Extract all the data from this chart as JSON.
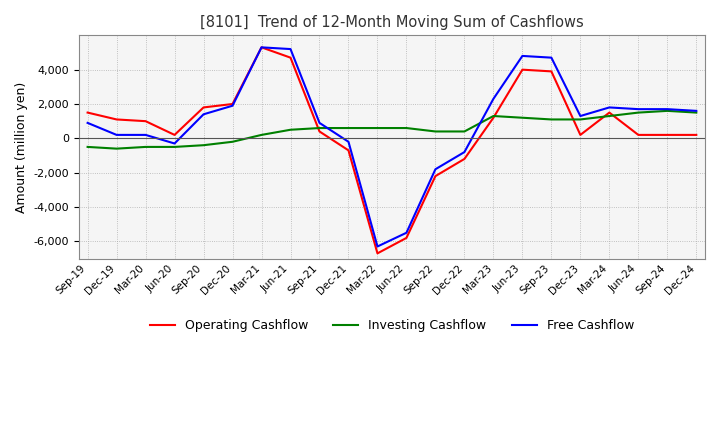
{
  "title": "[8101]  Trend of 12-Month Moving Sum of Cashflows",
  "ylabel": "Amount (million yen)",
  "x_labels": [
    "Sep-19",
    "Dec-19",
    "Mar-20",
    "Jun-20",
    "Sep-20",
    "Dec-20",
    "Mar-21",
    "Jun-21",
    "Sep-21",
    "Dec-21",
    "Mar-22",
    "Jun-22",
    "Sep-22",
    "Dec-22",
    "Mar-23",
    "Jun-23",
    "Sep-23",
    "Dec-23",
    "Mar-24",
    "Jun-24",
    "Sep-24",
    "Dec-24"
  ],
  "operating_cashflow": [
    1500,
    1100,
    1000,
    200,
    1800,
    2000,
    5300,
    4700,
    400,
    -700,
    -6700,
    -5800,
    -2200,
    -1200,
    1200,
    4000,
    3900,
    200,
    1500,
    200,
    200,
    200
  ],
  "investing_cashflow": [
    -500,
    -600,
    -500,
    -500,
    -400,
    -200,
    200,
    500,
    600,
    600,
    600,
    600,
    400,
    400,
    1300,
    1200,
    1100,
    1100,
    1300,
    1500,
    1600,
    1500
  ],
  "free_cashflow": [
    900,
    200,
    200,
    -300,
    1400,
    1900,
    5300,
    5200,
    900,
    -200,
    -6300,
    -5500,
    -1800,
    -800,
    2300,
    4800,
    4700,
    1300,
    1800,
    1700,
    1700,
    1600
  ],
  "operating_color": "#ff0000",
  "investing_color": "#008000",
  "free_color": "#0000ff",
  "ylim": [
    -7000,
    6000
  ],
  "yticks": [
    -6000,
    -4000,
    -2000,
    0,
    2000,
    4000
  ],
  "grid_color": "#b0b0b0",
  "background_color": "#ffffff"
}
